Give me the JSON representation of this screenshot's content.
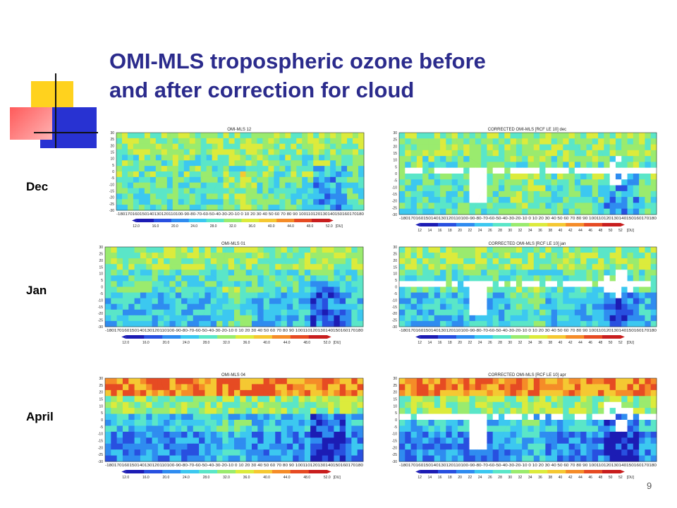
{
  "slide": {
    "title_line1": "OMI-MLS tropospheric ozone before",
    "title_line2": "and after correction for cloud",
    "page_number": "9",
    "title_color": "#2b2b8c"
  },
  "rows": [
    {
      "label": "Dec",
      "before_title": "OMI-MLS 12",
      "after_title": "CORRECTED OMI-MLS [RCF LE 10] dec"
    },
    {
      "label": "Jan",
      "before_title": "OMI-MLS 01",
      "after_title": "CORRECTED OMI-MLS [RCF LE 10] jan"
    },
    {
      "label": "April",
      "before_title": "OMI-MLS 04",
      "after_title": "CORRECTED OMI-MLS [RCF LE 10] apr"
    }
  ],
  "axes": {
    "lat_ticks": [
      "30",
      "25",
      "20",
      "15",
      "10",
      "5",
      "0",
      "-5",
      "-10",
      "-15",
      "-20",
      "-25",
      "-30"
    ],
    "lon_ticks_text": "-180170160150140130120110100-90-80-70-60-50-40-30-20-10 0 10 20 30 40 50 60 70 80 90 100110120130140150160170180"
  },
  "colorbars": {
    "before_labels": [
      "12.0",
      "16.0",
      "20.0",
      "24.0",
      "28.0",
      "32.0",
      "36.0",
      "40.0",
      "44.0",
      "48.0",
      "52.0",
      "[DU]"
    ],
    "after_labels": [
      "12",
      "14",
      "16",
      "18",
      "20",
      "22",
      "24",
      "26",
      "28",
      "30",
      "32",
      "34",
      "36",
      "38",
      "40",
      "42",
      "44",
      "46",
      "48",
      "50",
      "52",
      "[DU]"
    ],
    "scale": [
      "#1c1cb4",
      "#2850e0",
      "#2f8cf0",
      "#3cc8f0",
      "#5ae6c8",
      "#9aeb6e",
      "#dceb3c",
      "#f5c832",
      "#f58c28",
      "#e64b23",
      "#c81e1e"
    ]
  }
}
